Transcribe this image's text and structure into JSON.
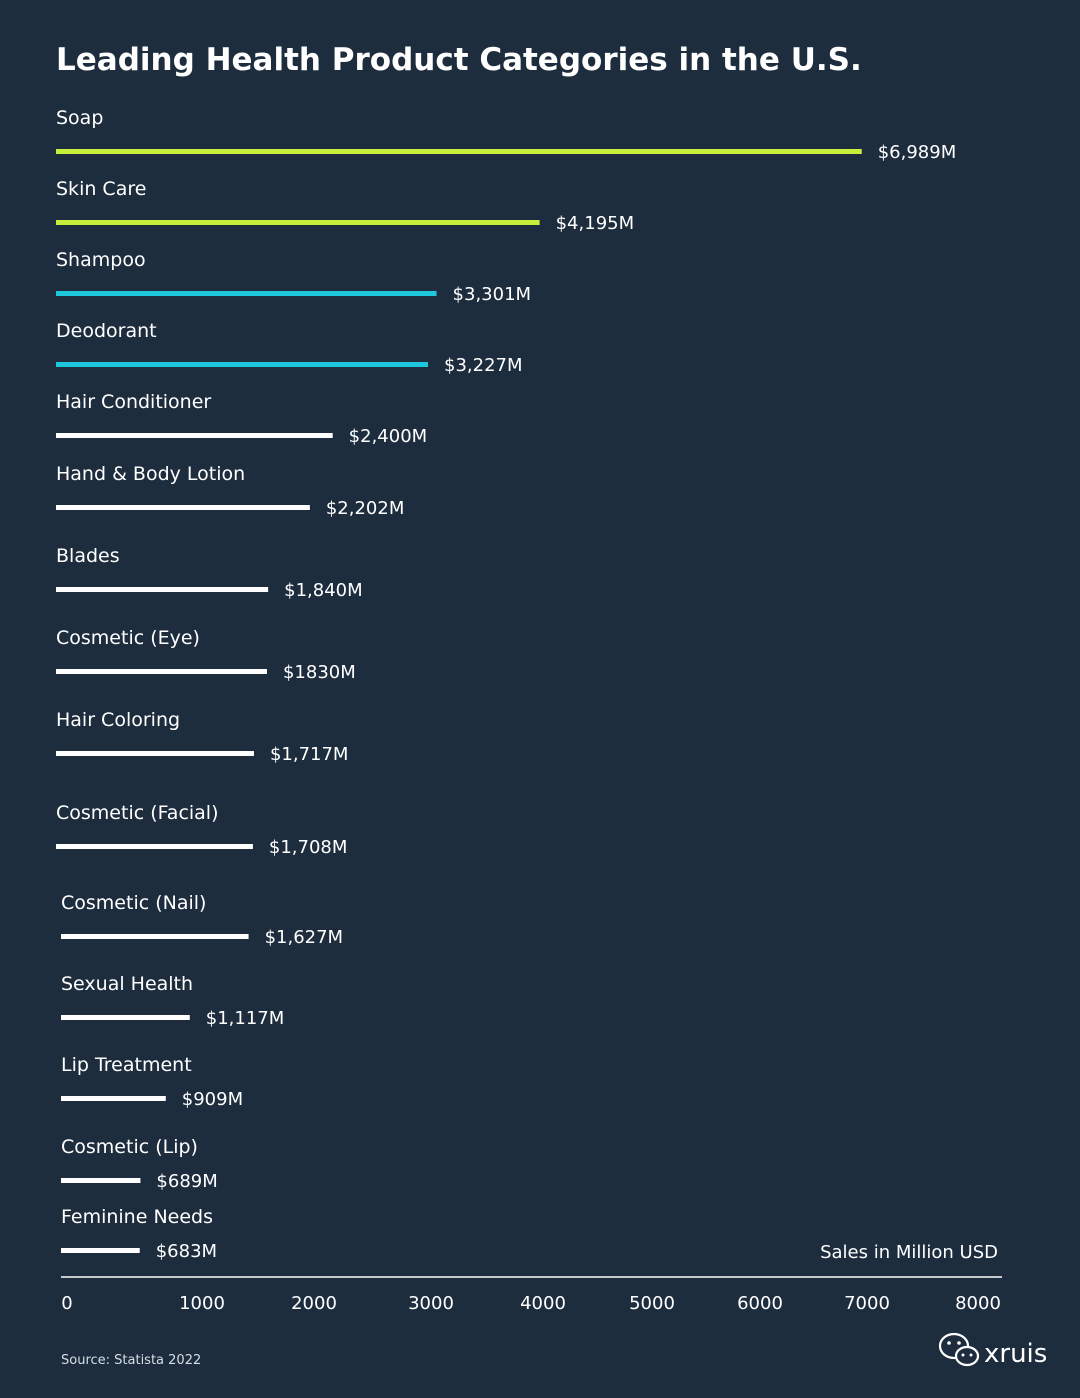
{
  "chart_data": {
    "type": "bar",
    "orientation": "horizontal",
    "title": "Leading Health Product Categories in the U.S.",
    "unit_label": "Sales in Million USD",
    "xlim": [
      0,
      8000
    ],
    "x_ticks": [
      0,
      1000,
      2000,
      3000,
      4000,
      5000,
      6000,
      7000,
      8000
    ],
    "grid": false,
    "categories": [
      "Soap",
      "Skin Care",
      "Shampoo",
      "Deodorant",
      "Hair Conditioner",
      "Hand & Body Lotion",
      "Blades",
      "Cosmetic (Eye)",
      "Hair Coloring",
      "Cosmetic (Facial)",
      "Cosmetic (Nail)",
      "Sexual Health",
      "Lip Treatment",
      "Cosmetic (Lip)",
      "Feminine Needs"
    ],
    "values": [
      6989,
      4195,
      3301,
      3227,
      2400,
      2202,
      1840,
      1830,
      1717,
      1708,
      1627,
      1117,
      909,
      689,
      683
    ],
    "value_labels": [
      "$6,989M",
      "$4,195M",
      "$3,301M",
      "$3,227M",
      "$2,400M",
      "$2,202M",
      "$1,840M",
      "$1830M",
      "$1,717M",
      "$1,708M",
      "$1,627M",
      "$1,117M",
      "$909M",
      "$689M",
      "$683M"
    ],
    "bar_colors": [
      "#c8ee3c",
      "#c8ee3c",
      "#1ec8dc",
      "#1ec8dc",
      "#ffffff",
      "#ffffff",
      "#ffffff",
      "#ffffff",
      "#ffffff",
      "#ffffff",
      "#ffffff",
      "#ffffff",
      "#ffffff",
      "#ffffff",
      "#ffffff"
    ],
    "source": "Source: Statista 2022"
  },
  "watermark": {
    "icon": "wechat-icon",
    "text": "xruis"
  },
  "colors": {
    "background": "#1d2d3e",
    "axis": "#ffffff"
  }
}
